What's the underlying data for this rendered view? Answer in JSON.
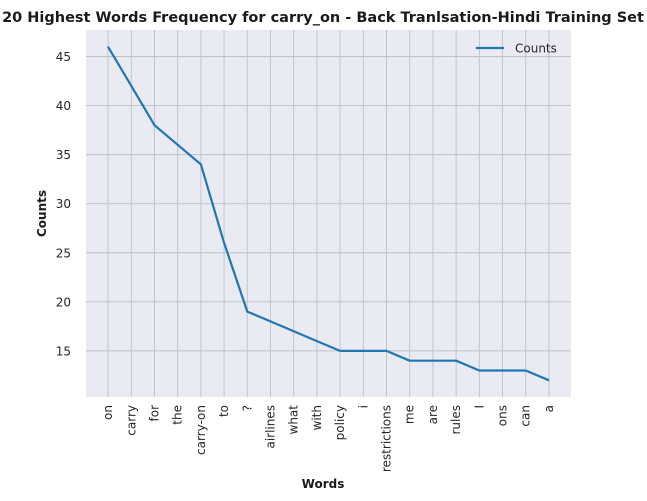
{
  "chart_data": {
    "type": "line",
    "title": "20 Highest Words Frequency for carry_on - Back Tranlsation-Hindi Training Set",
    "xlabel": "Words",
    "ylabel": "Counts",
    "categories": [
      "on",
      "carry",
      "for",
      "the",
      "carry-on",
      "to",
      "?",
      "airlines",
      "what",
      "with",
      "policy",
      "i",
      "restrictions",
      "me",
      "are",
      "rules",
      "I",
      "ons",
      "can",
      "a"
    ],
    "series": [
      {
        "name": "Counts",
        "values": [
          46,
          42,
          38,
          36,
          34,
          26,
          19,
          18,
          17,
          16,
          15,
          15,
          15,
          14,
          14,
          14,
          13,
          13,
          13,
          12
        ],
        "color": "#1f77b4"
      }
    ],
    "yticks": [
      15,
      20,
      25,
      30,
      35,
      40,
      45
    ],
    "ylim": [
      10.3,
      47.7
    ],
    "grid": true,
    "legend_position": "top-right",
    "background": "#eaeaf2",
    "grid_color": "#c0c0c8"
  }
}
